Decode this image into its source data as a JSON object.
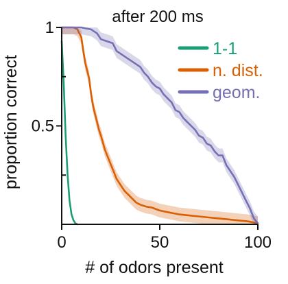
{
  "chart_data": {
    "type": "line",
    "title": "after 200 ms",
    "xlabel": "# of odors present",
    "ylabel": "proportion correct",
    "xlim": [
      0,
      100
    ],
    "ylim": [
      0,
      1
    ],
    "xticks": [
      0,
      50,
      100
    ],
    "xtick_labels": [
      "0",
      "50",
      "100"
    ],
    "yticks": [
      0.5,
      1
    ],
    "ytick_labels": [
      "0.5",
      "1"
    ],
    "yticks_minor": [
      0.25,
      0.75
    ],
    "grid": false,
    "legend": "top-right",
    "series": [
      {
        "name": "1-1",
        "color": "#1b9e77",
        "band_width": 0.0,
        "points": [
          [
            0,
            0.93
          ],
          [
            1,
            0.72
          ],
          [
            2,
            0.45
          ],
          [
            3,
            0.25
          ],
          [
            4,
            0.12
          ],
          [
            5,
            0.05
          ],
          [
            6,
            0.02
          ],
          [
            7,
            0.005
          ],
          [
            8,
            0.0
          ]
        ]
      },
      {
        "name": "n. dist.",
        "color": "#d95f02",
        "band_width": 0.035,
        "points": [
          [
            0,
            1.0
          ],
          [
            6,
            1.0
          ],
          [
            8,
            0.99
          ],
          [
            10,
            0.95
          ],
          [
            11,
            0.88
          ],
          [
            12,
            0.82
          ],
          [
            13,
            0.78
          ],
          [
            14,
            0.74
          ],
          [
            15,
            0.66
          ],
          [
            16,
            0.6
          ],
          [
            17,
            0.56
          ],
          [
            18,
            0.52
          ],
          [
            19,
            0.48
          ],
          [
            20,
            0.45
          ],
          [
            22,
            0.38
          ],
          [
            24,
            0.33
          ],
          [
            26,
            0.28
          ],
          [
            28,
            0.23
          ],
          [
            30,
            0.2
          ],
          [
            32,
            0.17
          ],
          [
            34,
            0.15
          ],
          [
            36,
            0.13
          ],
          [
            38,
            0.11
          ],
          [
            40,
            0.1
          ],
          [
            43,
            0.09
          ],
          [
            46,
            0.085
          ],
          [
            50,
            0.07
          ],
          [
            55,
            0.06
          ],
          [
            60,
            0.05
          ],
          [
            65,
            0.045
          ],
          [
            70,
            0.04
          ],
          [
            75,
            0.035
          ],
          [
            80,
            0.03
          ],
          [
            85,
            0.025
          ],
          [
            90,
            0.02
          ],
          [
            95,
            0.015
          ],
          [
            100,
            0.005
          ]
        ]
      },
      {
        "name": "geom.",
        "color": "#7570b3",
        "band_width": 0.035,
        "points": [
          [
            0,
            1.0
          ],
          [
            10,
            1.0
          ],
          [
            15,
            0.99
          ],
          [
            18,
            0.97
          ],
          [
            20,
            0.94
          ],
          [
            23,
            0.93
          ],
          [
            26,
            0.92
          ],
          [
            28,
            0.88
          ],
          [
            31,
            0.86
          ],
          [
            34,
            0.84
          ],
          [
            37,
            0.82
          ],
          [
            40,
            0.8
          ],
          [
            42,
            0.77
          ],
          [
            44,
            0.75
          ],
          [
            46,
            0.72
          ],
          [
            48,
            0.7
          ],
          [
            50,
            0.69
          ],
          [
            52,
            0.66
          ],
          [
            54,
            0.64
          ],
          [
            56,
            0.62
          ],
          [
            58,
            0.58
          ],
          [
            60,
            0.57
          ],
          [
            62,
            0.54
          ],
          [
            64,
            0.52
          ],
          [
            66,
            0.5
          ],
          [
            68,
            0.48
          ],
          [
            70,
            0.45
          ],
          [
            72,
            0.44
          ],
          [
            74,
            0.41
          ],
          [
            76,
            0.4
          ],
          [
            78,
            0.37
          ],
          [
            80,
            0.35
          ],
          [
            82,
            0.35
          ],
          [
            84,
            0.3
          ],
          [
            86,
            0.27
          ],
          [
            88,
            0.24
          ],
          [
            90,
            0.2
          ],
          [
            92,
            0.16
          ],
          [
            94,
            0.12
          ],
          [
            96,
            0.08
          ],
          [
            98,
            0.03
          ],
          [
            100,
            0.005
          ]
        ]
      }
    ]
  }
}
